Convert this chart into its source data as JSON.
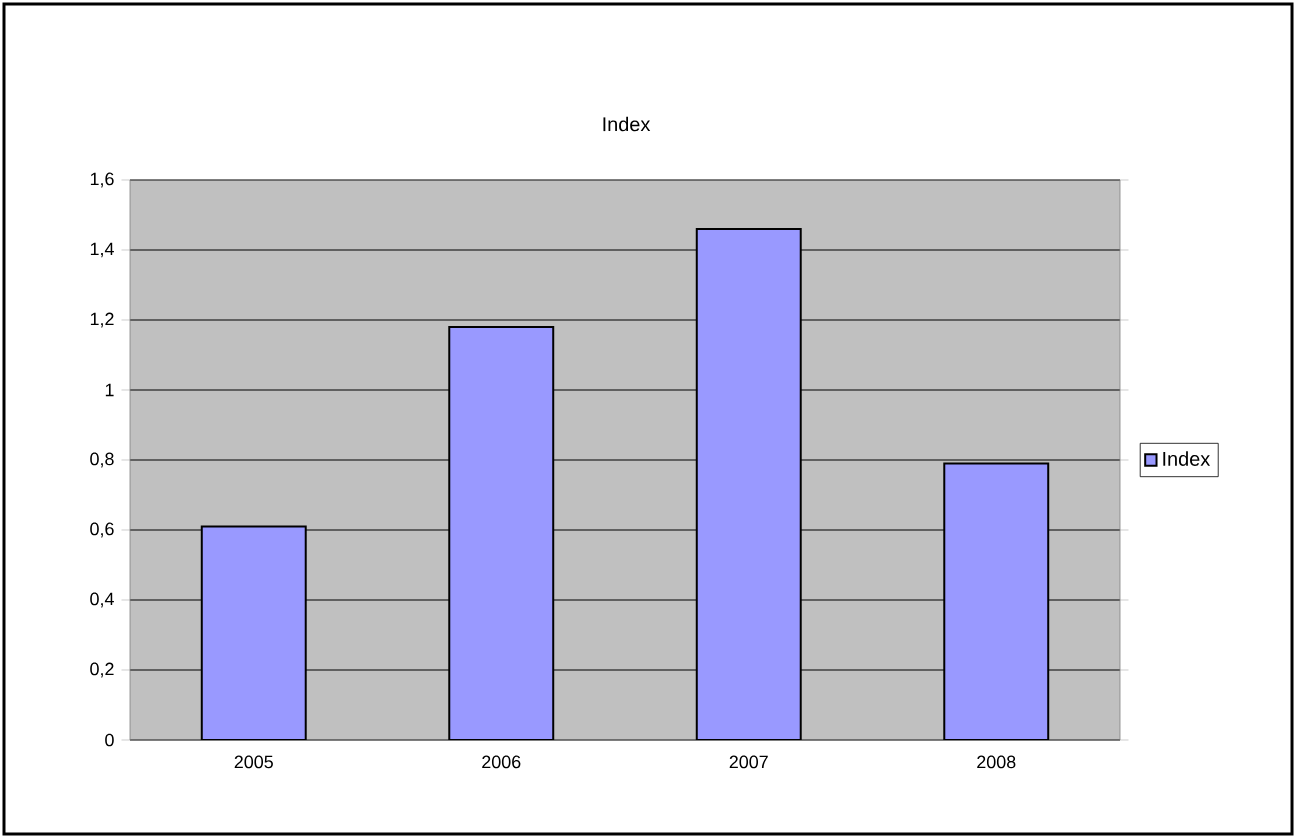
{
  "chart_data": {
    "type": "bar",
    "title": "Index",
    "categories": [
      "2005",
      "2006",
      "2007",
      "2008"
    ],
    "series": [
      {
        "name": "Index",
        "color": "#9999ff",
        "values": [
          0.61,
          1.18,
          1.46,
          0.79
        ]
      }
    ],
    "ylim": [
      0,
      1.6
    ],
    "yticks": [
      0,
      {
        "value": 0.2,
        "label": "0,2"
      },
      {
        "value": 0.4,
        "label": "0,4"
      },
      {
        "value": 0.6,
        "label": "0,6"
      },
      {
        "value": 0.8,
        "label": "0,8"
      },
      1,
      {
        "value": 1.2,
        "label": "1,2"
      },
      {
        "value": 1.4,
        "label": "1,4"
      },
      {
        "value": 1.6,
        "label": "1,6"
      }
    ],
    "grid": "y",
    "legend": "right"
  }
}
